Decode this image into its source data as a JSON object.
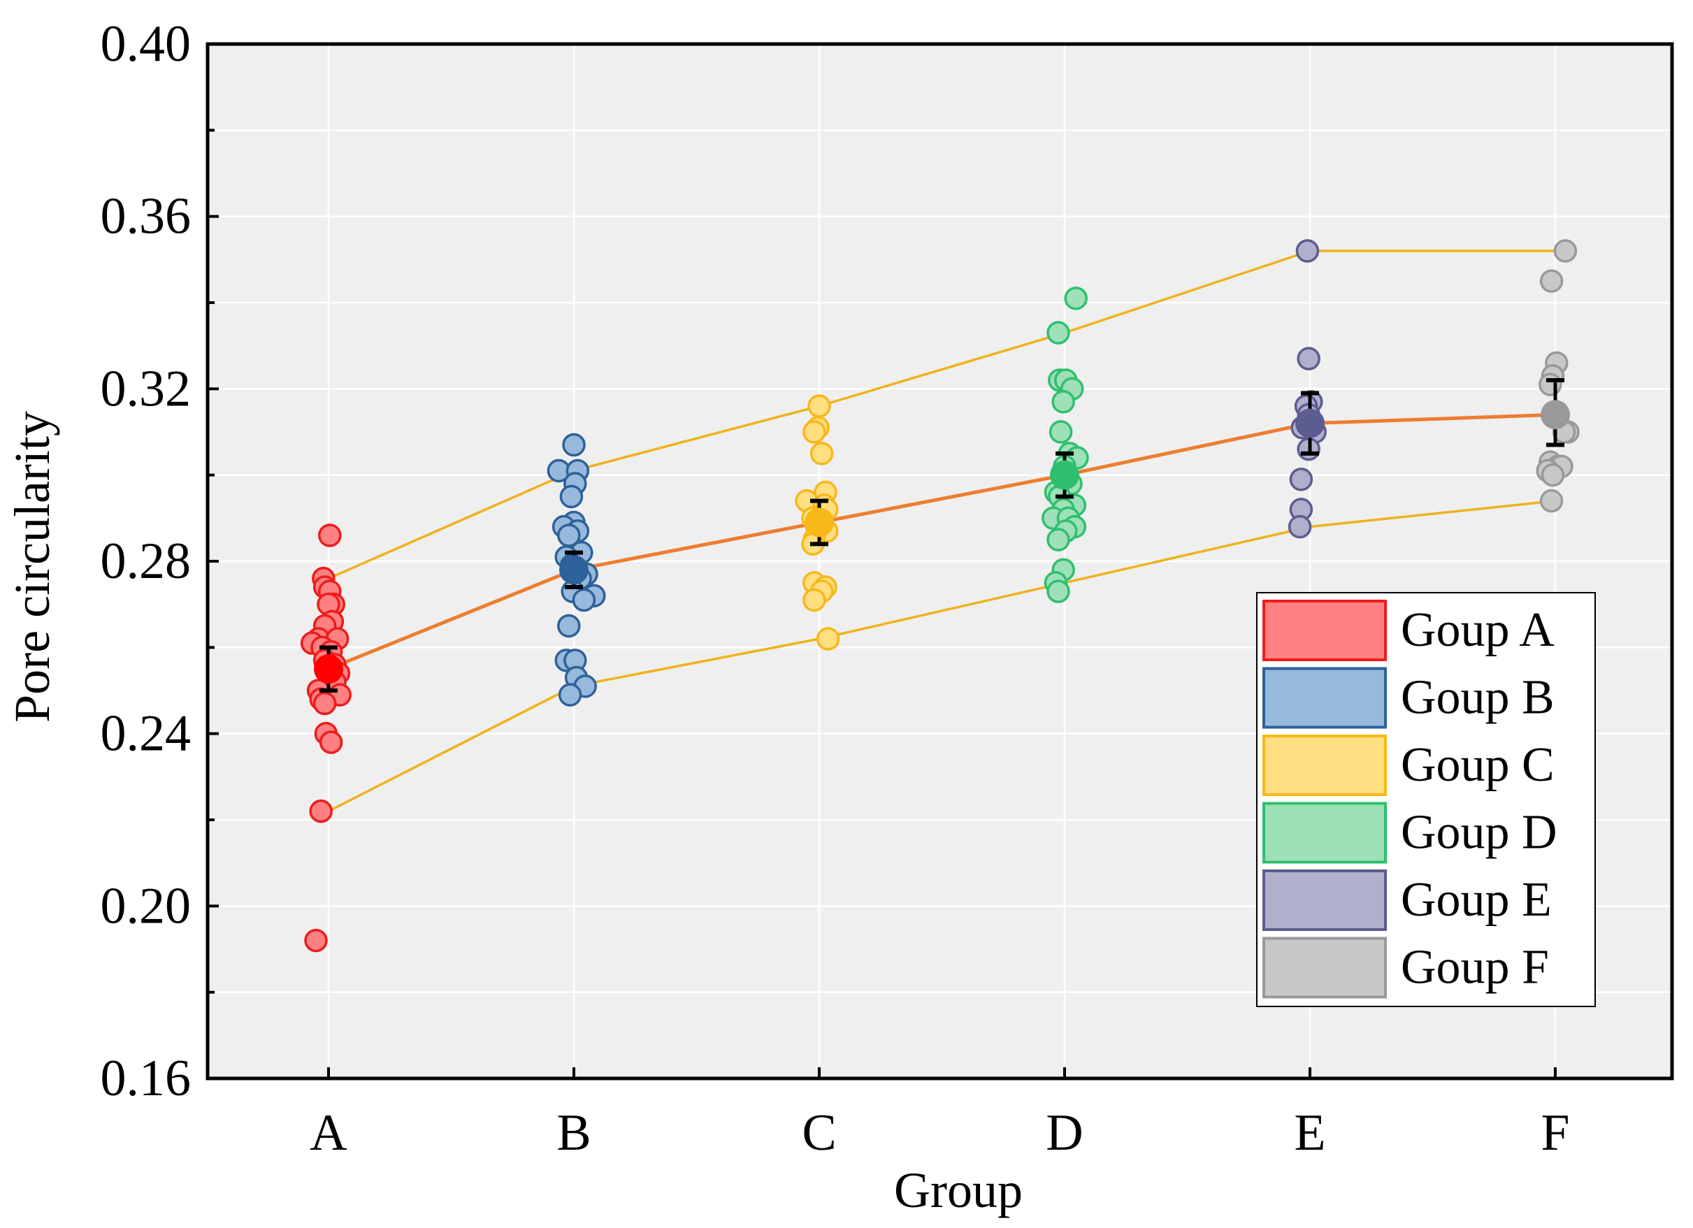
{
  "chart_data": {
    "type": "scatter",
    "title": "",
    "xlabel": "Group",
    "ylabel": "Pore circularity",
    "ylim": [
      0.16,
      0.4
    ],
    "yticks": [
      0.16,
      0.2,
      0.24,
      0.28,
      0.32,
      0.36,
      0.4
    ],
    "ytick_labels": [
      "0.16",
      "0.20",
      "0.24",
      "0.28",
      "0.32",
      "0.36",
      "0.40"
    ],
    "categories": [
      "A",
      "B",
      "C",
      "D",
      "E",
      "F"
    ],
    "grid": true,
    "legend_position": "bottom-right",
    "series": [
      {
        "name": "Goup A",
        "fill": "#ff8080",
        "stroke": "#ee1c1c",
        "mean_color": "#ff0000",
        "mean": 0.255,
        "err_low": 0.25,
        "err_high": 0.26,
        "points": [
          {
            "v": 0.286,
            "j": 0.01
          },
          {
            "v": 0.276,
            "j": -0.04
          },
          {
            "v": 0.274,
            "j": -0.03
          },
          {
            "v": 0.273,
            "j": 0.01
          },
          {
            "v": 0.27,
            "j": 0.04
          },
          {
            "v": 0.27,
            "j": 0.0
          },
          {
            "v": 0.266,
            "j": 0.03
          },
          {
            "v": 0.265,
            "j": -0.03
          },
          {
            "v": 0.262,
            "j": -0.08
          },
          {
            "v": 0.262,
            "j": 0.07
          },
          {
            "v": 0.261,
            "j": -0.13
          },
          {
            "v": 0.26,
            "j": -0.05
          },
          {
            "v": 0.259,
            "j": 0.02
          },
          {
            "v": 0.257,
            "j": -0.03
          },
          {
            "v": 0.256,
            "j": 0.05
          },
          {
            "v": 0.254,
            "j": 0.08
          },
          {
            "v": 0.252,
            "j": 0.05
          },
          {
            "v": 0.25,
            "j": -0.08
          },
          {
            "v": 0.249,
            "j": 0.09
          },
          {
            "v": 0.248,
            "j": -0.06
          },
          {
            "v": 0.247,
            "j": -0.03
          },
          {
            "v": 0.24,
            "j": -0.02
          },
          {
            "v": 0.238,
            "j": 0.02
          },
          {
            "v": 0.222,
            "j": -0.06
          },
          {
            "v": 0.192,
            "j": -0.1
          }
        ]
      },
      {
        "name": "Goup B",
        "fill": "#96b9dc",
        "stroke": "#2e6199",
        "mean_color": "#2e6199",
        "mean": 0.278,
        "err_low": 0.274,
        "err_high": 0.282,
        "points": [
          {
            "v": 0.307,
            "j": 0.0
          },
          {
            "v": 0.301,
            "j": -0.12
          },
          {
            "v": 0.301,
            "j": 0.03
          },
          {
            "v": 0.298,
            "j": 0.01
          },
          {
            "v": 0.295,
            "j": -0.02
          },
          {
            "v": 0.289,
            "j": 0.0
          },
          {
            "v": 0.288,
            "j": -0.08
          },
          {
            "v": 0.287,
            "j": 0.03
          },
          {
            "v": 0.286,
            "j": -0.04
          },
          {
            "v": 0.282,
            "j": 0.06
          },
          {
            "v": 0.281,
            "j": -0.06
          },
          {
            "v": 0.279,
            "j": -0.02
          },
          {
            "v": 0.277,
            "j": 0.1
          },
          {
            "v": 0.276,
            "j": 0.05
          },
          {
            "v": 0.273,
            "j": -0.01
          },
          {
            "v": 0.272,
            "j": 0.16
          },
          {
            "v": 0.271,
            "j": 0.08
          },
          {
            "v": 0.265,
            "j": -0.04
          },
          {
            "v": 0.257,
            "j": -0.06
          },
          {
            "v": 0.257,
            "j": 0.01
          },
          {
            "v": 0.253,
            "j": 0.02
          },
          {
            "v": 0.251,
            "j": 0.09
          },
          {
            "v": 0.249,
            "j": -0.03
          }
        ]
      },
      {
        "name": "Goup C",
        "fill": "#ffdf80",
        "stroke": "#f7b81a",
        "mean_color": "#f7b81a",
        "mean": 0.289,
        "err_low": 0.284,
        "err_high": 0.294,
        "points": [
          {
            "v": 0.316,
            "j": 0.0
          },
          {
            "v": 0.311,
            "j": -0.01
          },
          {
            "v": 0.31,
            "j": -0.04
          },
          {
            "v": 0.305,
            "j": 0.02
          },
          {
            "v": 0.296,
            "j": 0.05
          },
          {
            "v": 0.294,
            "j": -0.1
          },
          {
            "v": 0.293,
            "j": 0.04
          },
          {
            "v": 0.292,
            "j": 0.06
          },
          {
            "v": 0.29,
            "j": -0.05
          },
          {
            "v": 0.288,
            "j": -0.02
          },
          {
            "v": 0.287,
            "j": 0.06
          },
          {
            "v": 0.285,
            "j": -0.04
          },
          {
            "v": 0.284,
            "j": -0.05
          },
          {
            "v": 0.275,
            "j": -0.04
          },
          {
            "v": 0.274,
            "j": 0.05
          },
          {
            "v": 0.273,
            "j": 0.02
          },
          {
            "v": 0.271,
            "j": -0.04
          },
          {
            "v": 0.262,
            "j": 0.07
          }
        ]
      },
      {
        "name": "Goup D",
        "fill": "#9ee0b8",
        "stroke": "#2ebf6e",
        "mean_color": "#2ebf6e",
        "mean": 0.3,
        "err_low": 0.295,
        "err_high": 0.305,
        "points": [
          {
            "v": 0.341,
            "j": 0.09
          },
          {
            "v": 0.333,
            "j": -0.05
          },
          {
            "v": 0.322,
            "j": -0.04
          },
          {
            "v": 0.322,
            "j": 0.01
          },
          {
            "v": 0.32,
            "j": 0.06
          },
          {
            "v": 0.317,
            "j": -0.01
          },
          {
            "v": 0.31,
            "j": -0.03
          },
          {
            "v": 0.305,
            "j": 0.04
          },
          {
            "v": 0.304,
            "j": 0.1
          },
          {
            "v": 0.302,
            "j": 0.0
          },
          {
            "v": 0.298,
            "j": 0.05
          },
          {
            "v": 0.296,
            "j": -0.07
          },
          {
            "v": 0.295,
            "j": -0.04
          },
          {
            "v": 0.293,
            "j": 0.08
          },
          {
            "v": 0.292,
            "j": -0.01
          },
          {
            "v": 0.29,
            "j": -0.09
          },
          {
            "v": 0.29,
            "j": 0.03
          },
          {
            "v": 0.288,
            "j": 0.08
          },
          {
            "v": 0.287,
            "j": 0.01
          },
          {
            "v": 0.285,
            "j": -0.05
          },
          {
            "v": 0.278,
            "j": -0.01
          },
          {
            "v": 0.275,
            "j": -0.07
          },
          {
            "v": 0.273,
            "j": -0.05
          }
        ]
      },
      {
        "name": "Goup E",
        "fill": "#b0b0cc",
        "stroke": "#5c5c91",
        "mean_color": "#5c5c91",
        "mean": 0.312,
        "err_low": 0.305,
        "err_high": 0.319,
        "points": [
          {
            "v": 0.352,
            "j": -0.02
          },
          {
            "v": 0.327,
            "j": -0.01
          },
          {
            "v": 0.317,
            "j": 0.01
          },
          {
            "v": 0.316,
            "j": -0.03
          },
          {
            "v": 0.314,
            "j": -0.01
          },
          {
            "v": 0.312,
            "j": 0.02
          },
          {
            "v": 0.311,
            "j": -0.06
          },
          {
            "v": 0.31,
            "j": 0.04
          },
          {
            "v": 0.306,
            "j": -0.01
          },
          {
            "v": 0.299,
            "j": -0.07
          },
          {
            "v": 0.292,
            "j": -0.07
          },
          {
            "v": 0.288,
            "j": -0.08
          }
        ]
      },
      {
        "name": "Goup F",
        "fill": "#c8c8c8",
        "stroke": "#999999",
        "mean_color": "#999999",
        "mean": 0.314,
        "err_low": 0.307,
        "err_high": 0.322,
        "points": [
          {
            "v": 0.352,
            "j": 0.08
          },
          {
            "v": 0.345,
            "j": -0.03
          },
          {
            "v": 0.326,
            "j": 0.01
          },
          {
            "v": 0.323,
            "j": -0.02
          },
          {
            "v": 0.321,
            "j": -0.04
          },
          {
            "v": 0.31,
            "j": 0.1
          },
          {
            "v": 0.31,
            "j": 0.07
          },
          {
            "v": 0.303,
            "j": -0.04
          },
          {
            "v": 0.302,
            "j": 0.02
          },
          {
            "v": 0.302,
            "j": 0.05
          },
          {
            "v": 0.301,
            "j": -0.06
          },
          {
            "v": 0.3,
            "j": -0.02
          },
          {
            "v": 0.294,
            "j": -0.03
          }
        ]
      }
    ],
    "mean_line": {
      "color": "#ed7d31",
      "values": [
        0.255,
        0.278,
        0.289,
        0.3,
        0.312,
        0.314
      ]
    },
    "upper_bound_line": {
      "color": "#f0b21c",
      "values": [
        0.276,
        0.301,
        0.316,
        0.333,
        0.352,
        0.352
      ]
    },
    "lower_bound_line": {
      "color": "#f0b21c",
      "values": [
        0.222,
        0.251,
        0.262,
        0.275,
        0.288,
        0.294
      ]
    },
    "colors": {
      "plot_background": "#efefef",
      "grid": "#ffffff",
      "error_bar": "#000000"
    }
  }
}
